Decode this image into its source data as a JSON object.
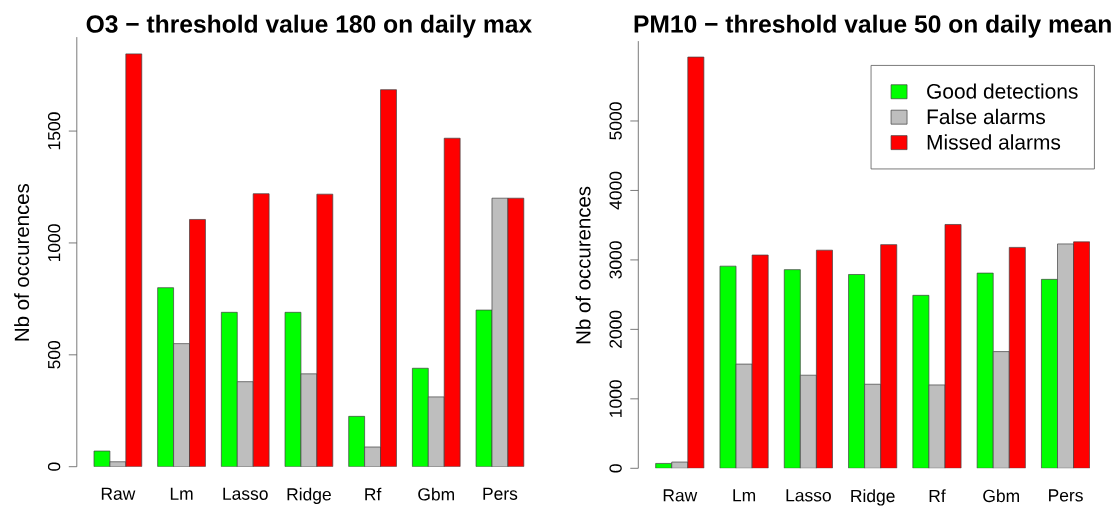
{
  "chart_data": [
    {
      "type": "bar",
      "title": "O3 − threshold value 180 on daily max",
      "ylabel": "Nb of occurences",
      "categories": [
        "Raw",
        "Lm",
        "Lasso",
        "Ridge",
        "Rf",
        "Gbm",
        "Pers"
      ],
      "series": [
        {
          "color": "#00ff00",
          "values": [
            70,
            800,
            690,
            690,
            225,
            440,
            700
          ]
        },
        {
          "color": "#bebebe",
          "values": [
            22,
            550,
            380,
            415,
            88,
            312,
            1200
          ]
        },
        {
          "color": "#ff0000",
          "values": [
            1845,
            1105,
            1220,
            1218,
            1685,
            1468,
            1200
          ]
        }
      ],
      "ylim": [
        0,
        1920
      ],
      "yticks": [
        0,
        500,
        1000,
        1500
      ]
    },
    {
      "type": "bar",
      "title": "PM10 − threshold value 50 on daily mean",
      "ylabel": "Nb of occurences",
      "categories": [
        "Raw",
        "Lm",
        "Lasso",
        "Ridge",
        "Rf",
        "Gbm",
        "Pers"
      ],
      "series": [
        {
          "name": "Good detections",
          "color": "#00ff00",
          "values": [
            70,
            2910,
            2860,
            2790,
            2490,
            2810,
            2720
          ]
        },
        {
          "name": "False alarms",
          "color": "#bebebe",
          "values": [
            90,
            1500,
            1340,
            1210,
            1200,
            1680,
            3230
          ]
        },
        {
          "name": "Missed alarms",
          "color": "#ff0000",
          "values": [
            5920,
            3070,
            3140,
            3220,
            3510,
            3180,
            3260
          ]
        }
      ],
      "ylim": [
        0,
        6150
      ],
      "yticks": [
        0,
        1000,
        2000,
        3000,
        4000,
        5000
      ],
      "legend": "top right"
    }
  ]
}
